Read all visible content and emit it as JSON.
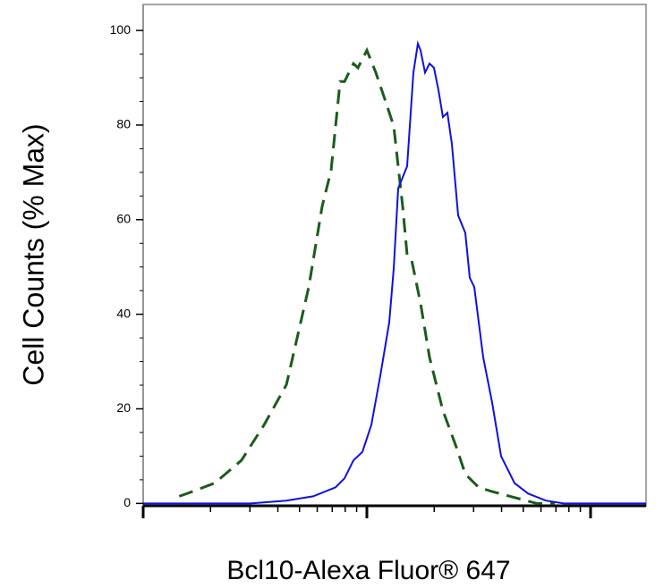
{
  "chart_data": {
    "type": "line",
    "xlabel": "Bcl10-Alexa Fluor® 647",
    "ylabel": "Cell Counts (% Max)",
    "xscale": "log",
    "xlim": [
      100,
      17700
    ],
    "xticks": [
      100,
      1000,
      10000
    ],
    "ylim": [
      -0.5,
      105.5
    ],
    "yticks": [
      0,
      20,
      40,
      60,
      80,
      100
    ],
    "series": [
      {
        "color": "#1a5c1a",
        "dash": true,
        "x": [
          145,
          166,
          209,
          275,
          347,
          437,
          550,
          631,
          692,
          759,
          794,
          832,
          871,
          912,
          1000,
          1096,
          1202,
          1318,
          1445,
          1514,
          1585,
          1738,
          1905,
          2188,
          2512,
          2754,
          3162,
          3631,
          4365,
          5754,
          6918
        ],
        "values": [
          1.5,
          2.5,
          4.3,
          9.1,
          16.6,
          25.1,
          45.8,
          62.8,
          70.4,
          89.2,
          89.2,
          91.1,
          93,
          92.1,
          95.8,
          91.1,
          85.5,
          79.8,
          62.8,
          52.5,
          51.5,
          42.3,
          30.9,
          19.6,
          11.9,
          6.2,
          3.4,
          2.5,
          1.5,
          0,
          0
        ]
      },
      {
        "color": "#1010e0",
        "dash": false,
        "x": [
          100,
          251,
          302,
          437,
          575,
          724,
          794,
          871,
          955,
          1047,
          1148,
          1259,
          1318,
          1380,
          1514,
          1614,
          1690,
          1738,
          1820,
          1905,
          1995,
          2089,
          2188,
          2291,
          2399,
          2559,
          2754,
          2884,
          3020,
          3311,
          3631,
          3981,
          4571,
          5248,
          6310,
          7586,
          10000,
          17700
        ],
        "values": [
          0,
          0,
          0,
          0.6,
          1.5,
          3.4,
          5.3,
          9.1,
          10.9,
          16.6,
          27,
          38.3,
          49.6,
          66.6,
          71.3,
          91.1,
          97.2,
          95.8,
          91.1,
          93,
          92.1,
          87.4,
          81.7,
          82.6,
          76,
          60.9,
          57.2,
          47.7,
          45.8,
          30.9,
          21.3,
          10,
          4.3,
          2.1,
          0.6,
          0,
          0,
          0
        ]
      }
    ]
  }
}
